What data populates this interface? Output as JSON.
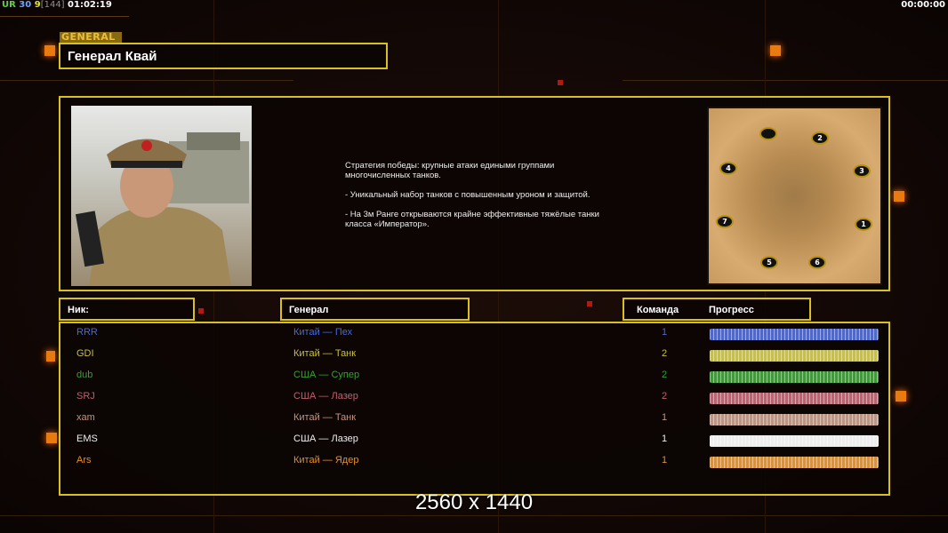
{
  "status": {
    "left_parts": [
      {
        "text": "UR",
        "color": "#60d040"
      },
      {
        "text": " 30",
        "color": "#6aa0ff"
      },
      {
        "text": " 9",
        "color": "#e0e040"
      },
      {
        "text": "[144]",
        "color": "#909090"
      },
      {
        "text": " 01:02:19",
        "color": "#ffffff"
      }
    ],
    "right": "00:00:00"
  },
  "header": {
    "tag": "GENERAL",
    "title": "Генерал Квай"
  },
  "description": "Стратегия победы: крупные атаки едиными группами\n многочисленных танков.\n\n- Уникальный набор танков с повышенным уроном и защитой.\n\n- На 3м Ранге открываются крайне эффективные тяжёлые танки\n класса «Император».",
  "map": {
    "slots": [
      "",
      "2",
      "4",
      "3",
      "7",
      "1",
      "5",
      "6"
    ]
  },
  "columns": {
    "nick": "Ник:",
    "general": "Генерал",
    "team": "Команда",
    "progress": "Прогресс"
  },
  "players": [
    {
      "nick": "RRR",
      "general": "Китай — Пех",
      "team": "1",
      "color": "#4a68d8",
      "progress": 100
    },
    {
      "nick": "GDI",
      "general": "Китай — Танк",
      "team": "2",
      "color": "#c8c040",
      "progress": 100
    },
    {
      "nick": "dub",
      "general": "США — Супер",
      "team": "2",
      "color": "#38a030",
      "progress": 100
    },
    {
      "nick": "SRJ",
      "general": "США — Лазер",
      "team": "2",
      "color": "#c06070",
      "progress": 100
    },
    {
      "nick": "xam",
      "general": "Китай — Танк",
      "team": "1",
      "color": "#c09480",
      "progress": 100
    },
    {
      "nick": "EMS",
      "general": "США — Лазер",
      "team": "1",
      "color": "#eeeeee",
      "progress": 100
    },
    {
      "nick": "Ars",
      "general": "Китай — Ядер",
      "team": "1",
      "color": "#e09030",
      "progress": 100
    }
  ],
  "watermark": "2560 x 1440"
}
